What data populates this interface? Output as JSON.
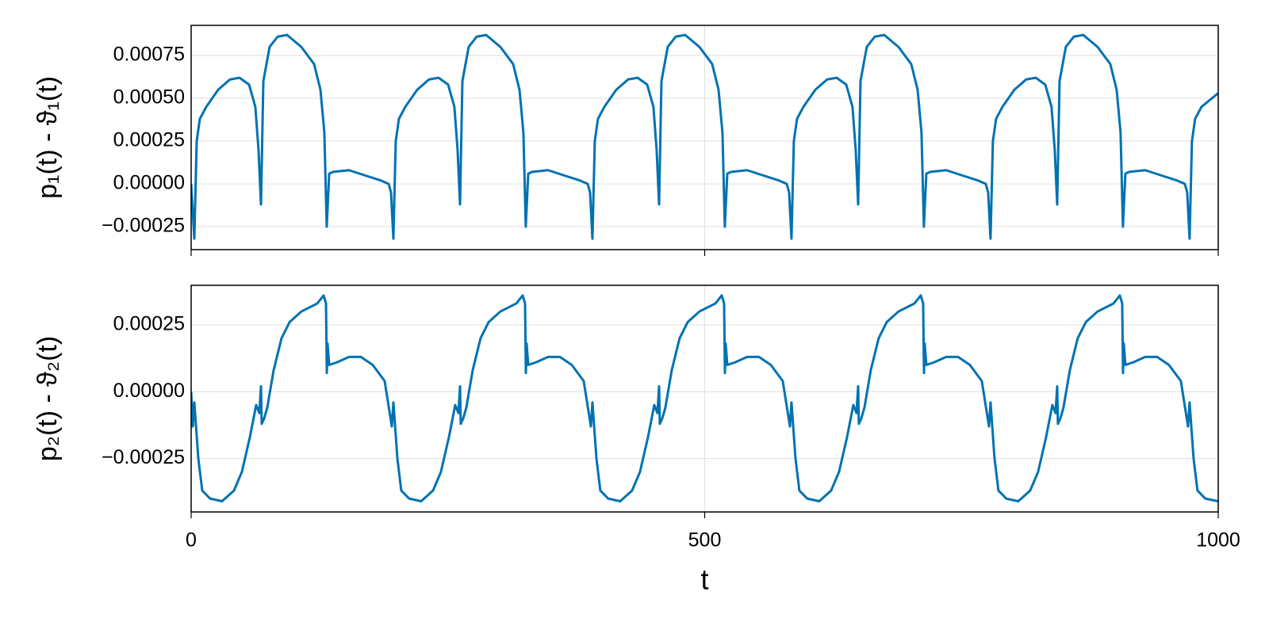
{
  "chart_data": [
    {
      "type": "line",
      "ylabel": "p₁(t) - ϑ₁(t)",
      "color": "#0072b2",
      "grid": true,
      "show_xtick_labels": false,
      "xlim": [
        0,
        1000
      ],
      "xticks": [
        0,
        500,
        1000
      ],
      "ylim": [
        -0.000384,
        0.000926
      ],
      "yticks": [
        {
          "value": -0.00025,
          "label": "−0.00025"
        },
        {
          "value": 0,
          "label": "0.00000"
        },
        0.00025,
        {
          "value": 0.0005,
          "label": "0.00050"
        },
        0.00075
      ],
      "x": [
        0,
        3.1,
        5.4,
        8.5,
        14.7,
        26.3,
        37.8,
        47.1,
        56.4,
        62.5,
        65.6,
        68.0,
        70.3,
        76.4,
        84.2,
        93.4,
        107.3,
        119.7,
        125.9,
        129.7,
        132.0,
        134.4,
        138.2,
        153.7,
        169.1,
        184.6,
        192.3,
        194.6,
        196.9,
        199.2,
        202.3,
        208.5,
        220.1,
        231.6,
        240.9,
        250.2,
        256.3,
        259.4,
        261.8,
        264.1,
        270.2,
        278.0,
        287.2,
        301.1,
        313.5,
        319.7,
        323.5,
        325.8,
        328.2,
        332.0,
        347.5,
        362.9,
        378.4,
        386.1,
        388.4,
        390.7,
        393.0,
        396.1,
        402.3,
        413.9,
        425.4,
        434.7,
        444.0,
        450.1,
        453.2,
        455.6,
        457.9,
        464.0,
        471.8,
        481.0,
        494.9,
        507.3,
        513.5,
        517.3,
        519.6,
        522.0,
        525.8,
        541.3,
        556.7,
        572.2,
        579.9,
        582.2,
        584.5,
        586.8,
        589.9,
        596.1,
        607.7,
        619.2,
        628.5,
        637.8,
        643.9,
        647.0,
        649.4,
        651.7,
        657.8,
        665.6,
        674.8,
        688.7,
        701.1,
        707.3,
        711.1,
        713.4,
        715.8,
        719.6,
        735.1,
        750.5,
        766.0,
        773.7,
        776.0,
        778.3,
        780.6,
        783.7,
        789.9,
        801.5,
        813.0,
        822.3,
        831.6,
        837.7,
        840.8,
        843.2,
        845.5,
        851.6,
        859.4,
        868.6,
        882.5,
        894.9,
        901.1,
        904.9,
        907.2,
        909.6,
        913.4,
        928.9,
        944.3,
        959.8,
        967.5,
        969.8,
        972.1,
        974.4,
        977.5,
        983.7,
        1000
      ],
      "values": [
        0,
        -0.00032,
        0.00025,
        0.00038,
        0.00045,
        0.00055,
        0.00061,
        0.00062,
        0.00058,
        0.00045,
        0.0002,
        -0.00012,
        0.0006,
        0.0008,
        0.00086,
        0.00087,
        0.0008,
        0.0007,
        0.00055,
        0.0003,
        -0.00025,
        6e-05,
        7e-05,
        8e-05,
        5e-05,
        2e-05,
        0,
        -5e-05,
        -0.00032,
        0.00025,
        0.00038,
        0.00045,
        0.00055,
        0.00061,
        0.00062,
        0.00058,
        0.00045,
        0.0002,
        -0.00012,
        0.0006,
        0.0008,
        0.00086,
        0.00087,
        0.0008,
        0.0007,
        0.00055,
        0.0003,
        -0.00025,
        6e-05,
        7e-05,
        8e-05,
        5e-05,
        2e-05,
        0,
        -5e-05,
        -0.00032,
        0.00025,
        0.00038,
        0.00045,
        0.00055,
        0.00061,
        0.00062,
        0.00058,
        0.00045,
        0.0002,
        -0.00012,
        0.0006,
        0.0008,
        0.00086,
        0.00087,
        0.0008,
        0.0007,
        0.00055,
        0.0003,
        -0.00025,
        6e-05,
        7e-05,
        8e-05,
        5e-05,
        2e-05,
        0,
        -5e-05,
        -0.00032,
        0.00025,
        0.00038,
        0.00045,
        0.00055,
        0.00061,
        0.00062,
        0.00058,
        0.00045,
        0.0002,
        -0.00012,
        0.0006,
        0.0008,
        0.00086,
        0.00087,
        0.0008,
        0.0007,
        0.00055,
        0.0003,
        -0.00025,
        6e-05,
        7e-05,
        8e-05,
        5e-05,
        2e-05,
        0,
        -5e-05,
        -0.00032,
        0.00025,
        0.00038,
        0.00045,
        0.00055,
        0.00061,
        0.00062,
        0.00058,
        0.00045,
        0.0002,
        -0.00012,
        0.0006,
        0.0008,
        0.00086,
        0.00087,
        0.0008,
        0.0007,
        0.00055,
        0.0003,
        -0.00025,
        6e-05,
        7e-05,
        8e-05,
        5e-05,
        2e-05,
        0,
        -5e-05,
        -0.00032,
        0.00025,
        0.00038,
        0.00045,
        0.00053
      ]
    },
    {
      "type": "line",
      "ylabel": "p₂(t) - ϑ₂(t)",
      "xlabel": "t",
      "color": "#0072b2",
      "grid": true,
      "show_xtick_labels": true,
      "xlim": [
        0,
        1000
      ],
      "xticks": [
        0,
        500,
        1000
      ],
      "ylim": [
        -0.00045,
        0.000398
      ],
      "yticks": [
        {
          "value": -0.00025,
          "label": "−0.00025"
        },
        {
          "value": 0,
          "label": "0.00000"
        },
        0.00025
      ],
      "x": [
        0,
        1.6,
        3.1,
        7.0,
        10.8,
        18.5,
        30.1,
        41.7,
        49.4,
        57.2,
        63.3,
        66.4,
        68.0,
        68.7,
        71.1,
        74.1,
        80.3,
        88.0,
        95.8,
        107.3,
        122.8,
        129.0,
        131.3,
        132.1,
        132.8,
        134.4,
        142.1,
        153.7,
        165.3,
        176.8,
        188.4,
        195.4,
        196.9,
        200.8,
        204.6,
        212.3,
        223.9,
        235.5,
        243.2,
        251.0,
        257.1,
        260.2,
        261.8,
        262.5,
        264.9,
        267.9,
        274.1,
        281.8,
        289.6,
        301.1,
        316.6,
        322.8,
        325.1,
        325.9,
        326.6,
        328.2,
        335.9,
        347.5,
        359.1,
        370.6,
        382.2,
        389.2,
        390.7,
        394.6,
        398.4,
        406.1,
        417.7,
        429.3,
        437.0,
        444.8,
        450.9,
        454.0,
        455.6,
        456.3,
        458.7,
        461.7,
        467.9,
        475.6,
        483.4,
        494.9,
        510.4,
        516.6,
        518.9,
        519.7,
        520.4,
        522.0,
        529.7,
        541.3,
        552.9,
        564.4,
        576.0,
        583.0,
        584.5,
        588.4,
        592.2,
        599.9,
        611.5,
        623.1,
        630.8,
        638.6,
        644.7,
        647.8,
        649.4,
        650.1,
        652.5,
        655.5,
        661.7,
        669.4,
        677.2,
        688.7,
        704.2,
        710.4,
        712.7,
        713.5,
        714.2,
        715.8,
        723.5,
        735.1,
        746.7,
        758.2,
        769.8,
        776.8,
        778.3,
        782.2,
        786.0,
        793.7,
        805.3,
        816.9,
        824.6,
        832.4,
        838.5,
        841.6,
        843.2,
        843.9,
        846.3,
        849.3,
        855.5,
        863.2,
        871.0,
        882.5,
        898.0,
        904.2,
        906.5,
        907.3,
        908.0,
        909.6,
        917.3,
        928.9,
        940.5,
        952.0,
        963.6,
        970.6,
        972.1,
        976.0,
        979.8,
        987.5,
        1000
      ],
      "values": [
        0,
        -0.00013,
        -4e-05,
        -0.00025,
        -0.00037,
        -0.0004,
        -0.00041,
        -0.00037,
        -0.0003,
        -0.00017,
        -5e-05,
        -8e-05,
        2e-05,
        -0.00012,
        -0.0001,
        -6e-05,
        8e-05,
        0.0002,
        0.00026,
        0.0003,
        0.00033,
        0.00036,
        0.00033,
        7e-05,
        0.00018,
        0.0001,
        0.00011,
        0.00013,
        0.00013,
        0.0001,
        4e-05,
        -0.00013,
        -4e-05,
        -0.00025,
        -0.00037,
        -0.0004,
        -0.00041,
        -0.00037,
        -0.0003,
        -0.00017,
        -5e-05,
        -8e-05,
        2e-05,
        -0.00012,
        -0.0001,
        -6e-05,
        8e-05,
        0.0002,
        0.00026,
        0.0003,
        0.00033,
        0.00036,
        0.00033,
        7e-05,
        0.00018,
        0.0001,
        0.00011,
        0.00013,
        0.00013,
        0.0001,
        4e-05,
        -0.00013,
        -4e-05,
        -0.00025,
        -0.00037,
        -0.0004,
        -0.00041,
        -0.00037,
        -0.0003,
        -0.00017,
        -5e-05,
        -8e-05,
        2e-05,
        -0.00012,
        -0.0001,
        -6e-05,
        8e-05,
        0.0002,
        0.00026,
        0.0003,
        0.00033,
        0.00036,
        0.00033,
        7e-05,
        0.00018,
        0.0001,
        0.00011,
        0.00013,
        0.00013,
        0.0001,
        4e-05,
        -0.00013,
        -4e-05,
        -0.00025,
        -0.00037,
        -0.0004,
        -0.00041,
        -0.00037,
        -0.0003,
        -0.00017,
        -5e-05,
        -8e-05,
        2e-05,
        -0.00012,
        -0.0001,
        -6e-05,
        8e-05,
        0.0002,
        0.00026,
        0.0003,
        0.00033,
        0.00036,
        0.00033,
        7e-05,
        0.00018,
        0.0001,
        0.00011,
        0.00013,
        0.00013,
        0.0001,
        4e-05,
        -0.00013,
        -4e-05,
        -0.00025,
        -0.00037,
        -0.0004,
        -0.00041,
        -0.00037,
        -0.0003,
        -0.00017,
        -5e-05,
        -8e-05,
        2e-05,
        -0.00012,
        -0.0001,
        -6e-05,
        8e-05,
        0.0002,
        0.00026,
        0.0003,
        0.00033,
        0.00036,
        0.00033,
        7e-05,
        0.00018,
        0.0001,
        0.00011,
        0.00013,
        0.00013,
        0.0001,
        4e-05,
        -0.00013,
        -4e-05,
        -0.00025,
        -0.00037,
        -0.0004,
        -0.00041
      ]
    }
  ]
}
